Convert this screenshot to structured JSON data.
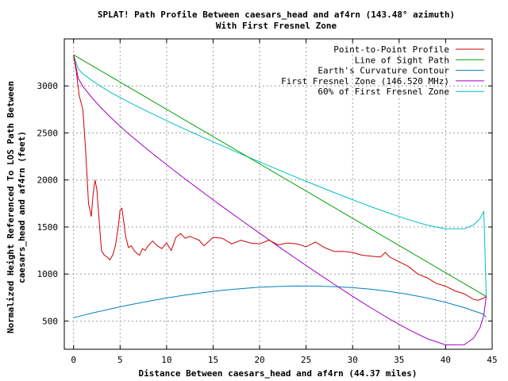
{
  "chart_data": {
    "type": "line",
    "title": "SPLAT! Path Profile Between caesars_head and af4rn (143.48° azimuth)",
    "subtitle": "With First Fresnel Zone",
    "xlabel": "Distance Between caesars_head and af4rn (44.37 miles)",
    "ylabel_line1": "Normalized Height Referenced To LOS Path Between",
    "ylabel_line2": "caesars_head and af4rn (feet)",
    "xlim": [
      -1,
      45
    ],
    "ylim": [
      200,
      3500
    ],
    "xticks": [
      0,
      5,
      10,
      15,
      20,
      25,
      30,
      35,
      40,
      45
    ],
    "yticks": [
      500,
      1000,
      1500,
      2000,
      2500,
      3000
    ],
    "grid": true,
    "legend_position": "top-right",
    "series": [
      {
        "name": "Point-to-Point Profile",
        "color": "#cc0000",
        "x": [
          0,
          0.3,
          0.6,
          1.0,
          1.3,
          1.6,
          1.9,
          2.1,
          2.3,
          2.5,
          2.8,
          3.0,
          3.3,
          3.6,
          3.9,
          4.2,
          4.5,
          4.8,
          5.0,
          5.2,
          5.4,
          5.6,
          5.9,
          6.2,
          6.5,
          6.8,
          7.1,
          7.4,
          7.7,
          8.0,
          8.5,
          9.0,
          9.5,
          10.0,
          10.5,
          11.0,
          11.5,
          12.0,
          12.5,
          13.0,
          13.5,
          14.0,
          15.0,
          16.0,
          17.0,
          18.0,
          19.0,
          20.0,
          21.0,
          22.0,
          23.0,
          24.0,
          25.0,
          26.0,
          27.0,
          28.0,
          29.0,
          30.0,
          31.0,
          32.0,
          33.0,
          33.5,
          34.0,
          35.0,
          36.0,
          37.0,
          38.0,
          39.0,
          40.0,
          41.0,
          42.0,
          43.0,
          43.5,
          44.0,
          44.37
        ],
        "y": [
          3320,
          3150,
          2900,
          2750,
          2300,
          1750,
          1610,
          1850,
          2000,
          1900,
          1500,
          1250,
          1200,
          1180,
          1150,
          1200,
          1300,
          1500,
          1680,
          1700,
          1550,
          1400,
          1280,
          1300,
          1250,
          1220,
          1200,
          1270,
          1250,
          1300,
          1350,
          1300,
          1270,
          1330,
          1250,
          1390,
          1430,
          1380,
          1400,
          1380,
          1360,
          1300,
          1390,
          1380,
          1320,
          1360,
          1330,
          1320,
          1360,
          1310,
          1330,
          1320,
          1290,
          1340,
          1280,
          1240,
          1240,
          1230,
          1200,
          1190,
          1180,
          1230,
          1180,
          1130,
          1080,
          1000,
          960,
          900,
          870,
          820,
          790,
          730,
          720,
          740,
          760
        ]
      },
      {
        "name": "Line of Sight Path",
        "color": "#00a000",
        "x": [
          0,
          44.37
        ],
        "y": [
          3330,
          760
        ]
      },
      {
        "name": "Earth's Curvature Contour",
        "color": "#0080c0",
        "x": [
          0,
          2,
          4,
          6,
          8,
          10,
          12,
          14,
          16,
          18,
          20,
          22,
          24,
          26,
          28,
          30,
          32,
          34,
          36,
          38,
          40,
          42,
          44,
          44.37
        ],
        "y": [
          535,
          585,
          630,
          672,
          710,
          745,
          776,
          803,
          826,
          845,
          859,
          868,
          873,
          872,
          866,
          855,
          838,
          814,
          783,
          745,
          699,
          643,
          575,
          540
        ]
      },
      {
        "name": "First Fresnel Zone (146.520 MHz)",
        "color": "#a000c0",
        "x": [
          0,
          0.5,
          1,
          2,
          3,
          4,
          5,
          6,
          8,
          10,
          12,
          14,
          16,
          18,
          20,
          22,
          24,
          26,
          28,
          30,
          32,
          34,
          36,
          38,
          40,
          42,
          43,
          43.7,
          44.1,
          44.37
        ],
        "y": [
          3330,
          3080,
          2995,
          2870,
          2762,
          2664,
          2572,
          2484,
          2319,
          2162,
          2010,
          1862,
          1717,
          1575,
          1434,
          1295,
          1158,
          1024,
          892,
          763,
          639,
          520,
          410,
          313,
          246,
          247,
          318,
          430,
          560,
          760
        ]
      },
      {
        "name": "60% of First Fresnel Zone",
        "color": "#00c0c0",
        "x": [
          0,
          0.5,
          1,
          2,
          3,
          4,
          5,
          6,
          8,
          10,
          12,
          14,
          16,
          18,
          20,
          22,
          24,
          26,
          28,
          30,
          32,
          34,
          36,
          38,
          40,
          42,
          43,
          43.7,
          44.1,
          44.37
        ],
        "y": [
          3330,
          3180,
          3129,
          3055,
          2990,
          2931,
          2876,
          2824,
          2725,
          2630,
          2539,
          2450,
          2362,
          2277,
          2193,
          2109,
          2026,
          1946,
          1867,
          1790,
          1715,
          1644,
          1578,
          1520,
          1480,
          1480,
          1522,
          1590,
          1668,
          760
        ]
      }
    ]
  }
}
